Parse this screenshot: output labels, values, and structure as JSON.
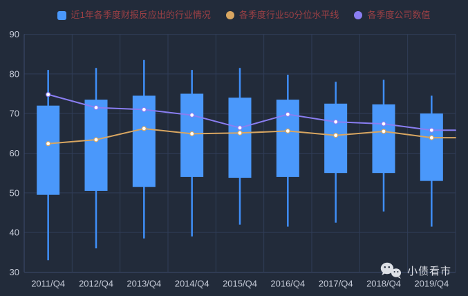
{
  "colors": {
    "background": "#222b3a",
    "grid_line": "#303d58",
    "axis_line": "#3e4c6e",
    "tick_label": "#c7ccd9",
    "legend_text": "#9c4045",
    "candle_fill": "#4a98fb",
    "whisker": "#3f8ef7",
    "percentile_line": "#d8a661",
    "company_line": "#8a7ef2",
    "watermark_text": "#e8eaf0"
  },
  "legend": {
    "items": [
      {
        "label": "近1年各季度财报反应出的行业情况",
        "marker": "square",
        "color": "#4a98fb"
      },
      {
        "label": "各季度行业50分位水平线",
        "marker": "circle",
        "color": "#d8a661"
      },
      {
        "label": "各季度公司数值",
        "marker": "circle",
        "color": "#8a7ef2"
      }
    ]
  },
  "watermark": {
    "text": "小债看市",
    "icon": "wechat-icon"
  },
  "chart_data": {
    "type": "candlestick",
    "title": "",
    "xlabel": "",
    "ylabel": "",
    "ylim": [
      30,
      90
    ],
    "y_ticks": [
      30,
      40,
      50,
      60,
      70,
      80,
      90
    ],
    "grid": true,
    "legend_position": "top",
    "categories": [
      "2011/Q4",
      "2012/Q4",
      "2013/Q4",
      "2014/Q4",
      "2015/Q4",
      "2016/Q4",
      "2017/Q4",
      "2018/Q4",
      "2019/Q4"
    ],
    "series": [
      {
        "name": "近1年各季度财报反应出的行业情况",
        "type": "candlestick",
        "color": "#4a98fb",
        "note": "values are [low, boxBottom, boxTop, high]",
        "values": [
          [
            33.0,
            49.5,
            72.0,
            81.0
          ],
          [
            36.0,
            50.5,
            73.5,
            81.5
          ],
          [
            38.5,
            51.5,
            74.5,
            83.5
          ],
          [
            39.0,
            54.0,
            75.0,
            81.0
          ],
          [
            42.0,
            53.8,
            74.0,
            81.5
          ],
          [
            41.5,
            54.0,
            73.5,
            79.8
          ],
          [
            42.5,
            55.0,
            72.5,
            78.0
          ],
          [
            45.3,
            55.0,
            72.3,
            78.5
          ],
          [
            41.5,
            53.0,
            70.0,
            74.5
          ]
        ]
      },
      {
        "name": "各季度行业50分位水平线",
        "type": "line",
        "color": "#d8a661",
        "values": [
          62.4,
          63.4,
          66.2,
          64.9,
          65.1,
          65.6,
          64.5,
          65.5,
          63.9
        ]
      },
      {
        "name": "各季度公司数值",
        "type": "line",
        "color": "#8a7ef2",
        "values": [
          74.8,
          71.5,
          71.0,
          69.6,
          66.4,
          69.8,
          67.9,
          67.4,
          65.8
        ]
      }
    ]
  }
}
